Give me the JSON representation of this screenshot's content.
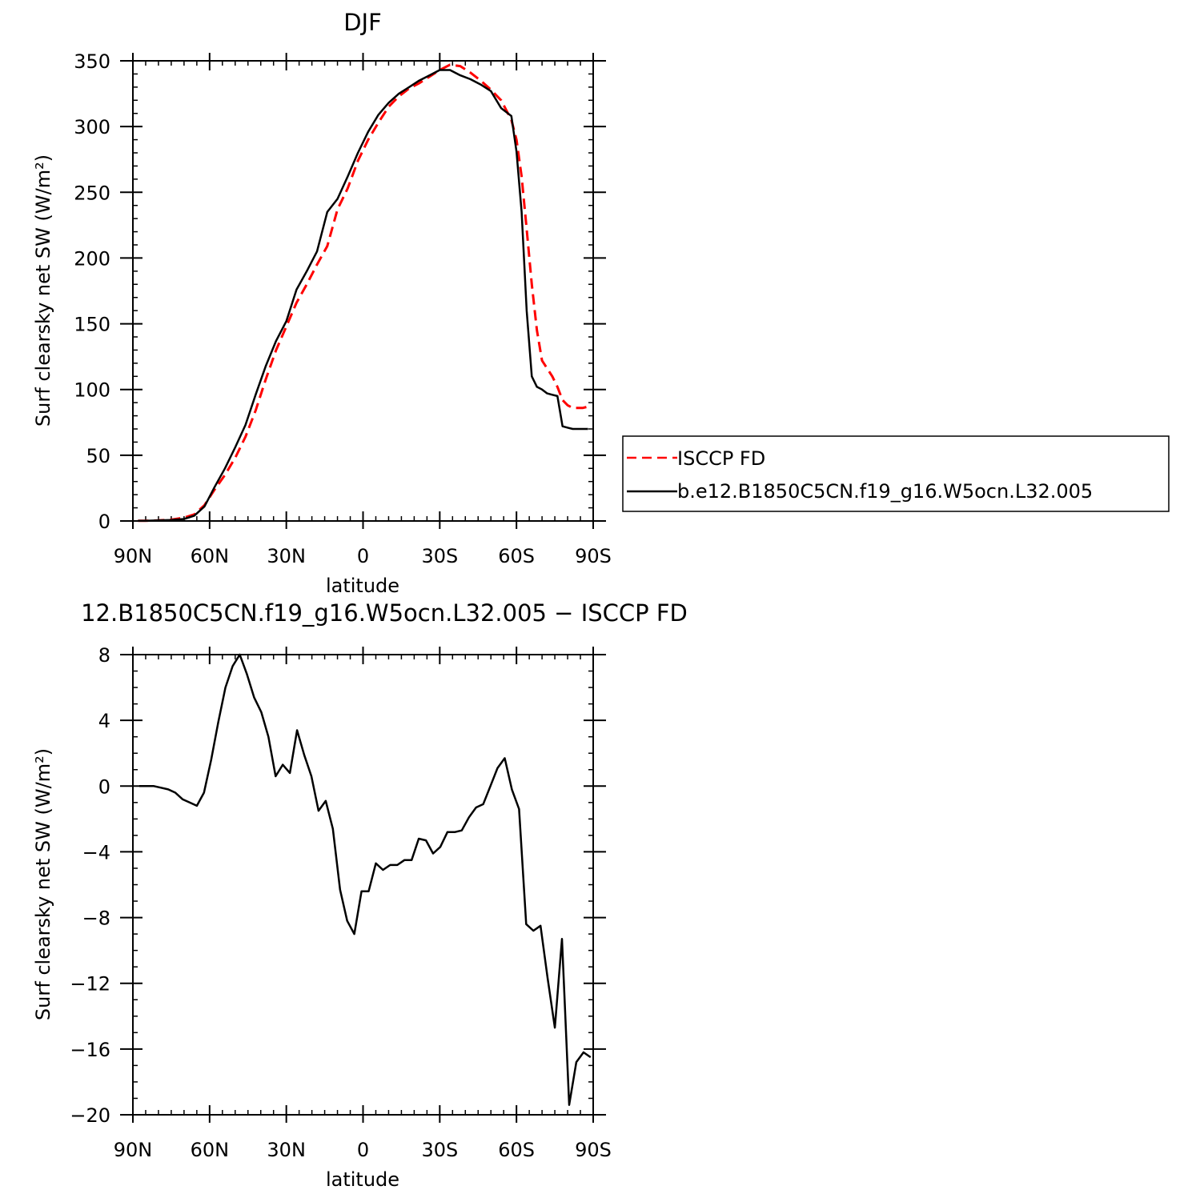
{
  "chart_data": [
    {
      "type": "line",
      "title": "DJF",
      "xlabel": "latitude",
      "ylabel": "Surf clearsky net SW (W/m²)",
      "xlim": [
        90,
        -90
      ],
      "ylim": [
        0,
        350
      ],
      "xticks": [
        {
          "value": 90,
          "label": "90N"
        },
        {
          "value": 60,
          "label": "60N"
        },
        {
          "value": 30,
          "label": "30N"
        },
        {
          "value": 0,
          "label": "0"
        },
        {
          "value": -30,
          "label": "30S"
        },
        {
          "value": -60,
          "label": "60S"
        },
        {
          "value": -90,
          "label": "90S"
        }
      ],
      "yticks": [
        {
          "value": 0,
          "label": "0"
        },
        {
          "value": 50,
          "label": "50"
        },
        {
          "value": 100,
          "label": "100"
        },
        {
          "value": 150,
          "label": "150"
        },
        {
          "value": 200,
          "label": "200"
        },
        {
          "value": 250,
          "label": "250"
        },
        {
          "value": 300,
          "label": "300"
        },
        {
          "value": 350,
          "label": "350"
        }
      ],
      "legend": {
        "position": "right"
      },
      "series": [
        {
          "name": "ISCCP FD",
          "color": "#ff0000",
          "dash": true,
          "x": [
            88,
            85,
            80,
            75,
            70,
            66,
            62,
            58,
            54,
            50,
            46,
            42,
            38,
            34,
            30,
            26,
            22,
            18,
            14,
            10,
            6,
            2,
            -2,
            -6,
            -10,
            -14,
            -18,
            -22,
            -26,
            -30,
            -34,
            -38,
            -42,
            -46,
            -50,
            -54,
            -58,
            -60,
            -62,
            -64,
            -66,
            -68,
            -70,
            -72,
            -74,
            -76,
            -78,
            -80,
            -82,
            -84,
            -86,
            -88
          ],
          "y": [
            0.1,
            0.2,
            0.4,
            1,
            2.5,
            5,
            12,
            24,
            35,
            48,
            64,
            84,
            108,
            130,
            148,
            166,
            180,
            195,
            209,
            237,
            253,
            274,
            290,
            303,
            315,
            323,
            329,
            333,
            338,
            343,
            347,
            346,
            341,
            335,
            328,
            320,
            305,
            290,
            262,
            222,
            180,
            145,
            122,
            116,
            110,
            102,
            92,
            88,
            86,
            86,
            86,
            87
          ]
        },
        {
          "name": "b.e12.B1850C5CN.f19_g16.W5ocn.L32.005",
          "color": "#000000",
          "dash": false,
          "x": [
            88,
            85,
            80,
            75,
            70,
            66,
            62,
            58,
            54,
            50,
            46,
            42,
            38,
            34,
            30,
            26,
            22,
            18,
            14,
            10,
            6,
            2,
            -2,
            -6,
            -10,
            -14,
            -18,
            -22,
            -26,
            -30,
            -34,
            -38,
            -42,
            -46,
            -50,
            -54,
            -58,
            -60,
            -62,
            -64,
            -66,
            -68,
            -70,
            -72,
            -74,
            -76,
            -78,
            -80,
            -82,
            -84,
            -86,
            -88
          ],
          "y": [
            0.1,
            0.2,
            0.4,
            0.8,
            1.5,
            4,
            11,
            26,
            40,
            56,
            73,
            96,
            118,
            137,
            152,
            176,
            190,
            205,
            235,
            245,
            262,
            280,
            296,
            309,
            318,
            325,
            330,
            335,
            339,
            343,
            343,
            339,
            336,
            332,
            327,
            314,
            308,
            281,
            235,
            160,
            110,
            102,
            100,
            97,
            96,
            95,
            72,
            71,
            70,
            70,
            70,
            70
          ]
        }
      ]
    },
    {
      "type": "line",
      "title": "12.B1850C5CN.f19_g16.W5ocn.L32.005 − ISCCP FD",
      "xlabel": "latitude",
      "ylabel": "Surf clearsky net SW (W/m²)",
      "xlim": [
        90,
        -90
      ],
      "ylim": [
        -20,
        8
      ],
      "xticks": [
        {
          "value": 90,
          "label": "90N"
        },
        {
          "value": 60,
          "label": "60N"
        },
        {
          "value": 30,
          "label": "30N"
        },
        {
          "value": 0,
          "label": "0"
        },
        {
          "value": -30,
          "label": "30S"
        },
        {
          "value": -60,
          "label": "60S"
        },
        {
          "value": -90,
          "label": "90S"
        }
      ],
      "yticks": [
        {
          "value": -20,
          "label": "−20"
        },
        {
          "value": -16,
          "label": "−16"
        },
        {
          "value": -12,
          "label": "−12"
        },
        {
          "value": -8,
          "label": "−8"
        },
        {
          "value": -4,
          "label": "−4"
        },
        {
          "value": 0,
          "label": "0"
        },
        {
          "value": 4,
          "label": "4"
        },
        {
          "value": 8,
          "label": "8"
        }
      ],
      "series": [
        {
          "color": "#000000",
          "x": [
            87.5,
            84.6,
            81.8,
            79,
            76.2,
            73.4,
            70.6,
            67.8,
            65,
            62.2,
            59.4,
            56.6,
            53.8,
            51,
            48.2,
            45.4,
            42.6,
            39.8,
            37,
            34.2,
            31.4,
            28.6,
            25.8,
            23,
            20.2,
            17.4,
            14.6,
            11.8,
            9,
            6.2,
            3.4,
            0.6,
            -2.2,
            -5,
            -7.8,
            -10.6,
            -13.4,
            -16.2,
            -19,
            -21.8,
            -24.6,
            -27.4,
            -30.2,
            -33,
            -35.8,
            -38.6,
            -41.4,
            -44.2,
            -47,
            -49.8,
            -52.6,
            -55.4,
            -58.2,
            -61,
            -63.8,
            -66.6,
            -69.4,
            -72.2,
            -75,
            -77.8,
            -80.6,
            -83.4,
            -86.2,
            -89
          ],
          "y": [
            0,
            0,
            0,
            -0.1,
            -0.2,
            -0.4,
            -0.8,
            -1,
            -1.2,
            -0.4,
            1.6,
            3.9,
            6,
            7.3,
            8,
            6.8,
            5.4,
            4.5,
            3,
            0.6,
            1.3,
            0.8,
            3.4,
            1.9,
            0.6,
            -1.5,
            -0.9,
            -2.6,
            -6.3,
            -8.2,
            -9,
            -6.4,
            -6.4,
            -4.7,
            -5.1,
            -4.8,
            -4.8,
            -4.5,
            -4.5,
            -3.2,
            -3.3,
            -4.1,
            -3.7,
            -2.8,
            -2.8,
            -2.7,
            -1.9,
            -1.3,
            -1.1,
            0,
            1.1,
            1.7,
            -0.2,
            -1.4,
            -8.4,
            -8.8,
            -8.5,
            -11.7,
            -14.7,
            -9.3,
            -19.4,
            -16.8,
            -16.2,
            -16.5
          ]
        }
      ]
    }
  ]
}
